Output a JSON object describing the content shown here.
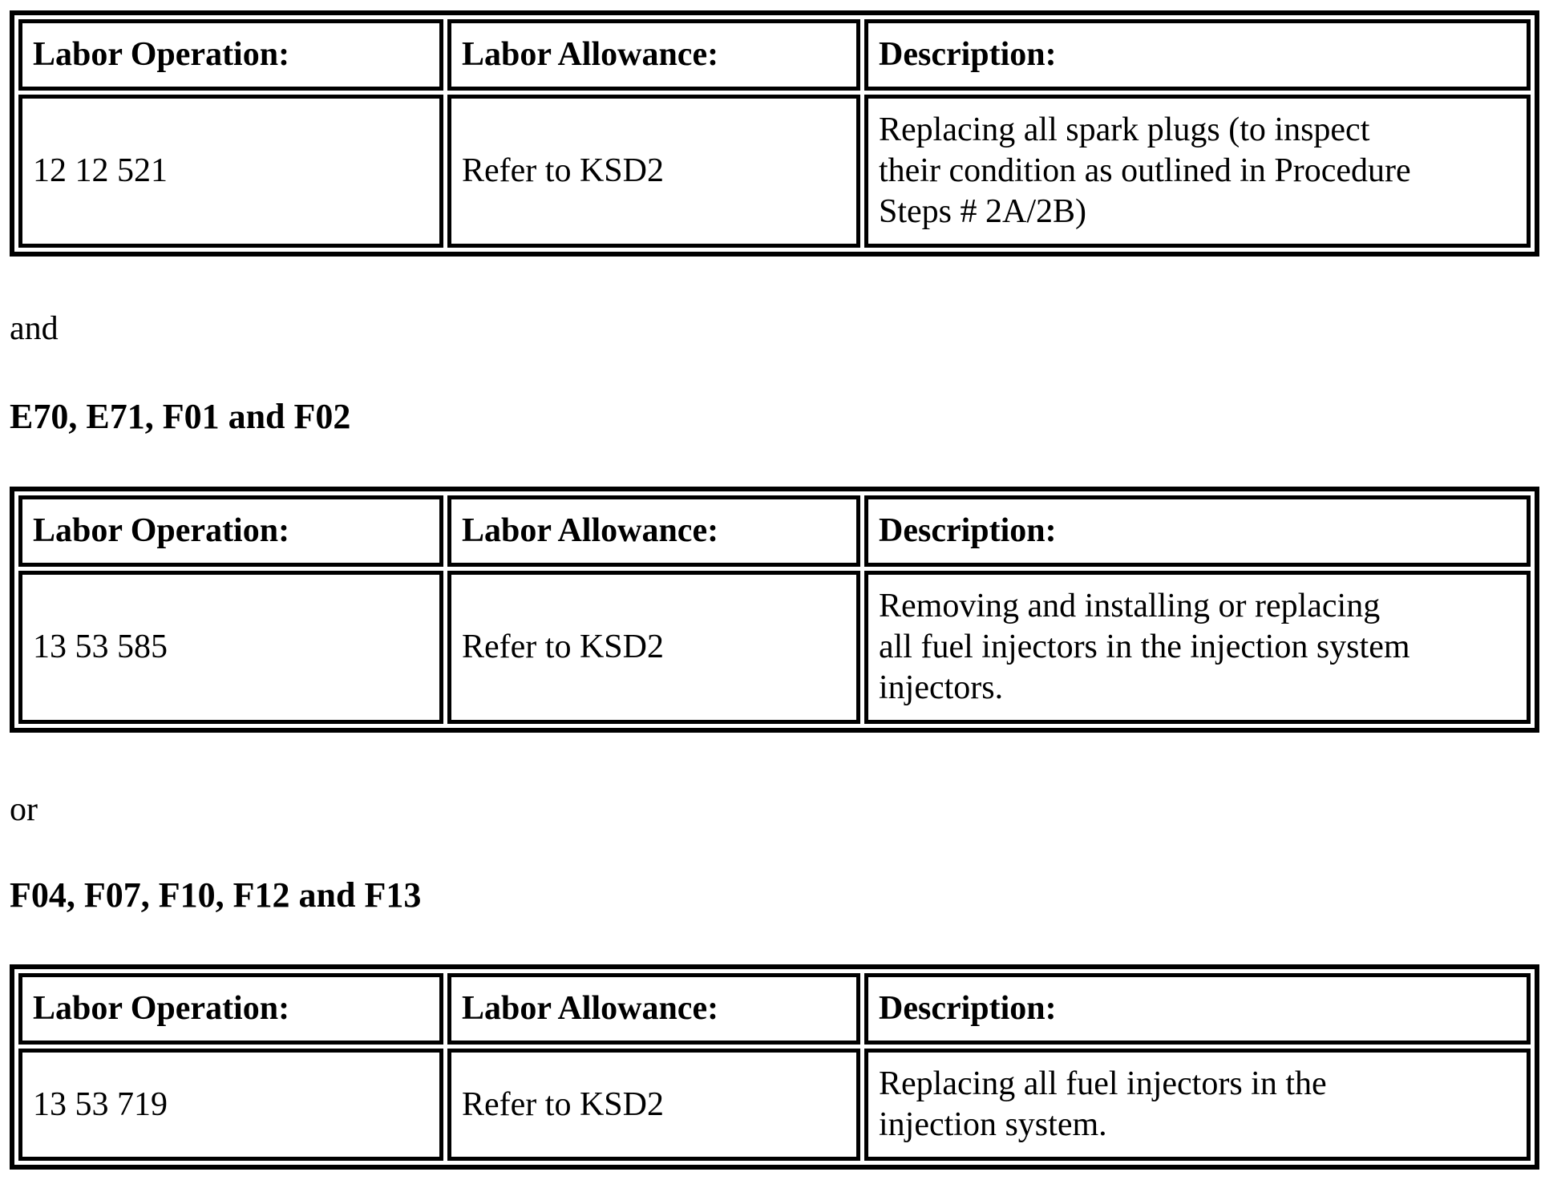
{
  "page": {
    "background_color": "#ffffff",
    "text_color": "#000000"
  },
  "table_headers": {
    "labor_operation": "Labor Operation:",
    "labor_allowance": "Labor Allowance:",
    "description": "Description:"
  },
  "connectors": {
    "and": "and",
    "or": "or"
  },
  "headings": {
    "group_1": "E70, E71, F01 and F02",
    "group_2": "F04, F07, F10, F12 and F13"
  },
  "tables": [
    {
      "labor_operation": "12 12 521",
      "labor_allowance": "Refer to KSD2",
      "description": "Replacing all spark plugs (to inspect\ntheir condition as outlined in Procedure\nSteps # 2A/2B)"
    },
    {
      "labor_operation": "13 53 585",
      "labor_allowance": "Refer to KSD2",
      "description": "Removing and installing or replacing\nall fuel injectors in the injection system\ninjectors."
    },
    {
      "labor_operation": "13 53 719",
      "labor_allowance": "Refer to KSD2",
      "description": "Replacing all fuel injectors in the\ninjection system."
    }
  ]
}
